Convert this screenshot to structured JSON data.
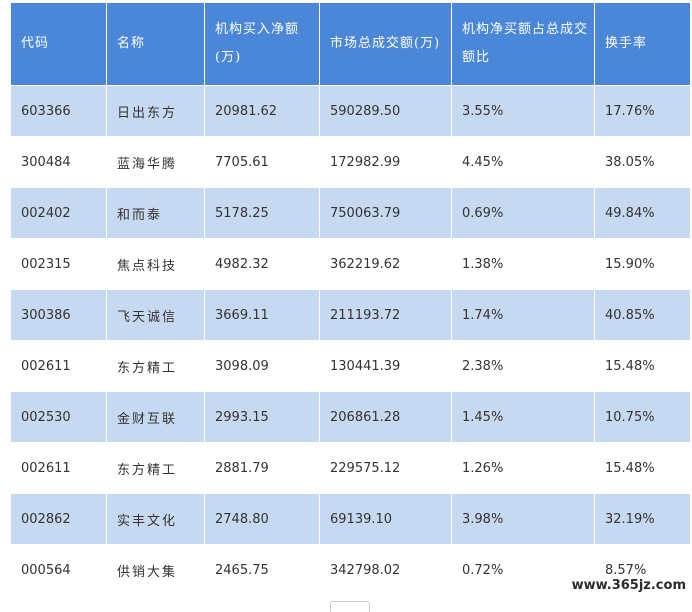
{
  "table": {
    "headers": [
      "代码",
      "名称",
      "机构买入净额(万)",
      "市场总成交额(万)",
      "机构净买额占总成交额比",
      "换手率"
    ],
    "rows": [
      [
        "603366",
        "日出东方",
        "20981.62",
        "590289.50",
        "3.55%",
        "17.76%"
      ],
      [
        "300484",
        "蓝海华腾",
        "7705.61",
        "172982.99",
        "4.45%",
        "38.05%"
      ],
      [
        "002402",
        "和而泰",
        "5178.25",
        "750063.79",
        "0.69%",
        "49.84%"
      ],
      [
        "002315",
        "焦点科技",
        "4982.32",
        "362219.62",
        "1.38%",
        "15.90%"
      ],
      [
        "300386",
        "飞天诚信",
        "3669.11",
        "211193.72",
        "1.74%",
        "40.85%"
      ],
      [
        "002611",
        "东方精工",
        "3098.09",
        "130441.39",
        "2.38%",
        "15.48%"
      ],
      [
        "002530",
        "金财互联",
        "2993.15",
        "206861.28",
        "1.45%",
        "10.75%"
      ],
      [
        "002611",
        "东方精工",
        "2881.79",
        "229575.12",
        "1.26%",
        "15.48%"
      ],
      [
        "002862",
        "实丰文化",
        "2748.80",
        "69139.10",
        "3.98%",
        "32.19%"
      ],
      [
        "000564",
        "供销大集",
        "2465.75",
        "342798.02",
        "0.72%",
        "8.57%"
      ]
    ]
  },
  "watermark": "www.365jz.com",
  "colors": {
    "header_bg": "#4a87d8",
    "row_stripe": "#c6d9f1",
    "row_plain": "#ffffff"
  }
}
